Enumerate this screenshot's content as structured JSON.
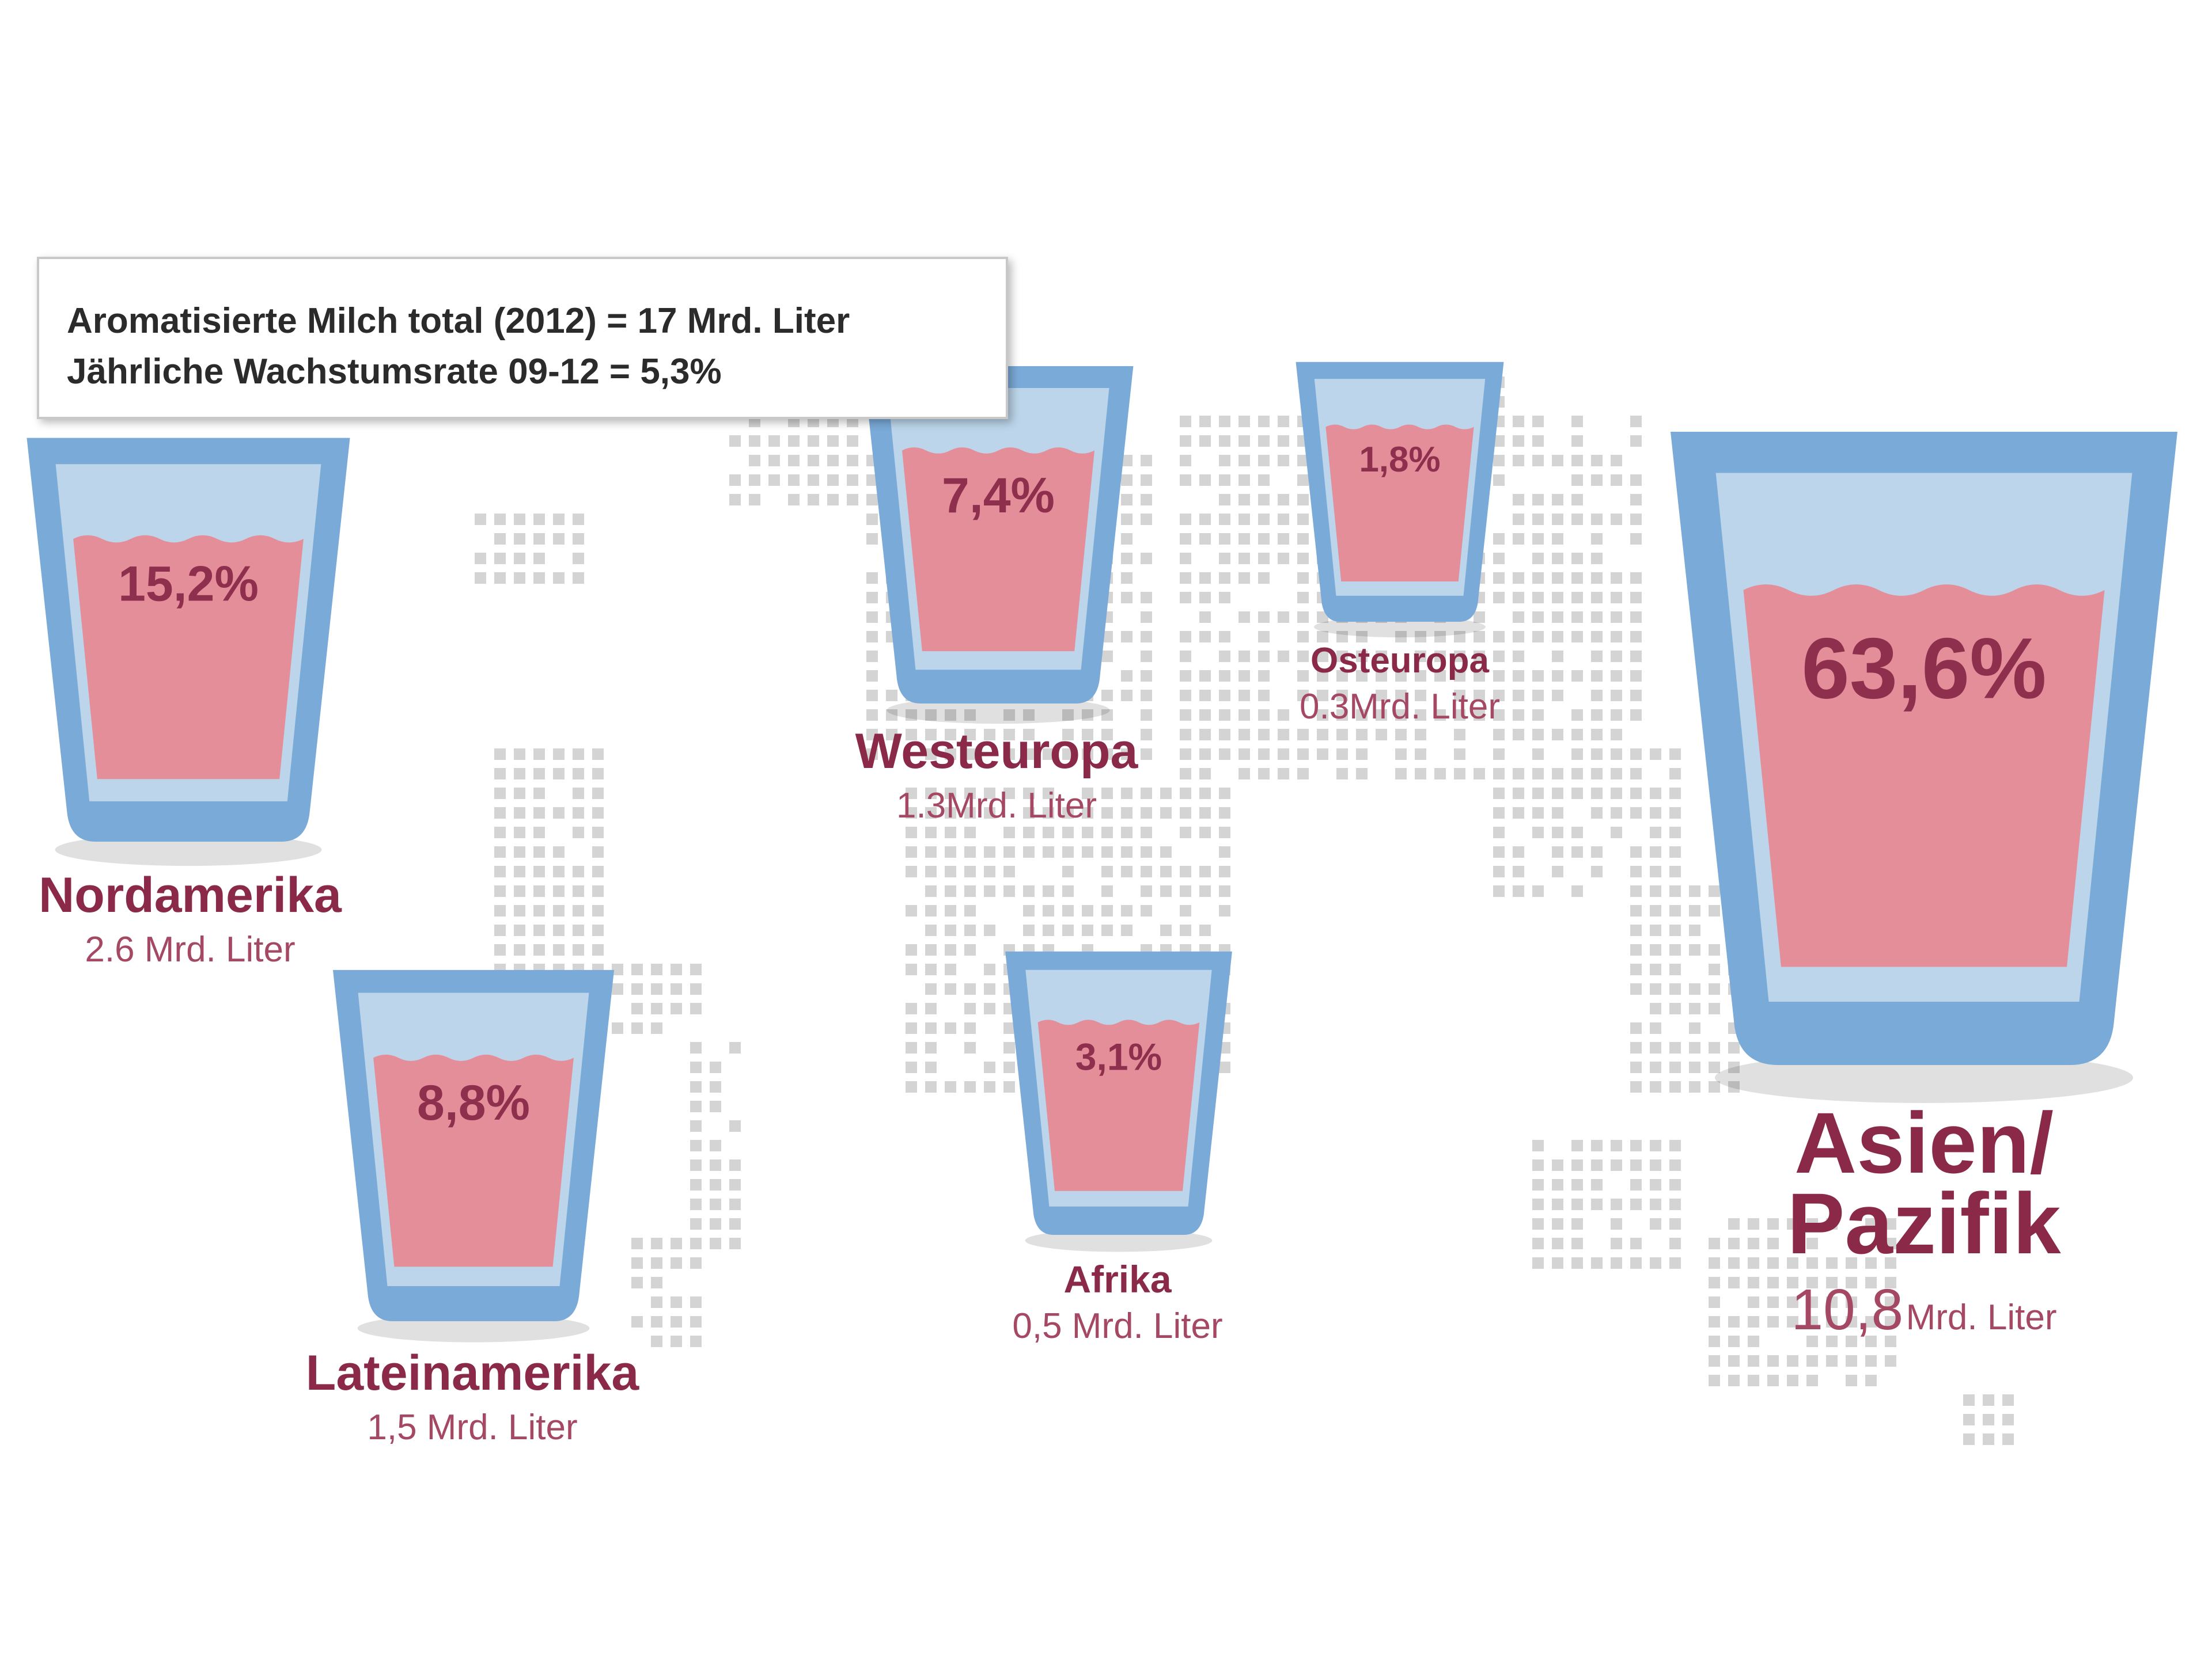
{
  "header": {
    "line1": "Aromatisierte Milch total (2012) = 17 Mrd. Liter",
    "line2": "Jährliche Wachstumsrate 09-12 = 5,3%"
  },
  "colors": {
    "glass_outer": "#7aaad8",
    "glass_inner": "#bcd5ea",
    "milk": "#e48e9a",
    "label": "#8a2a48",
    "percent": "#8e2f4d",
    "map_dots": "#d4d4d4"
  },
  "chart_data": {
    "type": "infographic",
    "unit": "Mrd. Liter",
    "regions": [
      {
        "name": "Nordamerika",
        "percent_label": "15,2%",
        "percent": 15.2,
        "volume_label": "2.6 Mrd. Liter",
        "volume": 2.6
      },
      {
        "name": "Westeuropa",
        "percent_label": "7,4%",
        "percent": 7.4,
        "volume_label": "1.3Mrd. Liter",
        "volume": 1.3
      },
      {
        "name": "Osteuropa",
        "percent_label": "1,8%",
        "percent": 1.8,
        "volume_label": "0.3Mrd. Liter",
        "volume": 0.3
      },
      {
        "name": "Asien/ Pazifik",
        "name_lines": [
          "Asien/",
          "Pazifik"
        ],
        "percent_label": "63,6%",
        "percent": 63.6,
        "volume_number": "10,8",
        "volume_unit": "Mrd. Liter",
        "volume": 10.8
      },
      {
        "name": "Lateinamerika",
        "percent_label": "8,8%",
        "percent": 8.8,
        "volume_label": "1,5 Mrd. Liter",
        "volume": 1.5
      },
      {
        "name": "Afrika",
        "percent_label": "3,1%",
        "percent": 3.1,
        "volume_label": "0,5 Mrd. Liter",
        "volume": 0.5
      }
    ]
  }
}
